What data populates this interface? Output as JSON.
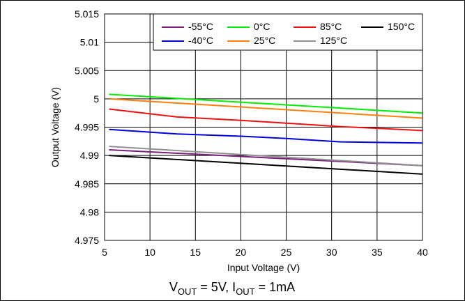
{
  "chart_data": {
    "type": "line",
    "xlabel": "Input Voltage (V)",
    "ylabel": "Output Voltage (V)",
    "xlim": [
      5,
      40
    ],
    "ylim": [
      4.975,
      5.015
    ],
    "x_ticks": [
      5,
      10,
      15,
      20,
      25,
      30,
      35,
      40
    ],
    "x_tick_labels": [
      "5",
      "10",
      "15",
      "20",
      "25",
      "30",
      "35",
      "40"
    ],
    "y_ticks": [
      4.975,
      4.98,
      4.985,
      4.99,
      4.995,
      5.0,
      5.005,
      5.01,
      5.015
    ],
    "y_tick_labels": [
      "4.975",
      "4.98",
      "4.985",
      "4.99",
      "4.995",
      "5",
      "5.005",
      "5.01",
      "5.015"
    ],
    "grid": true,
    "legend_position": "top-right",
    "caption": {
      "main": "V",
      "sub1": "OUT",
      "mid": " = 5V, I",
      "sub2": "OUT",
      "end": " = 1mA"
    },
    "series": [
      {
        "name": "-55°C",
        "color": "#7b1f7b",
        "x": [
          5.5,
          40
        ],
        "y": [
          4.991,
          4.9882
        ]
      },
      {
        "name": "-40°C",
        "color": "#0000dd",
        "x": [
          5.5,
          13,
          20,
          25,
          31,
          35,
          40
        ],
        "y": [
          4.9946,
          4.9938,
          4.9934,
          4.993,
          4.9924,
          4.9923,
          4.9922
        ]
      },
      {
        "name": "0°C",
        "color": "#00ee00",
        "x": [
          5.5,
          40
        ],
        "y": [
          5.0008,
          4.9975
        ]
      },
      {
        "name": "25°C",
        "color": "#ff7f0e",
        "x": [
          5.5,
          40
        ],
        "y": [
          5.0,
          4.9966
        ]
      },
      {
        "name": "85°C",
        "color": "#ee1111",
        "x": [
          5.5,
          13,
          20,
          25,
          31,
          35,
          40
        ],
        "y": [
          4.9982,
          4.9968,
          4.9962,
          4.9957,
          4.9951,
          4.9948,
          4.9944
        ]
      },
      {
        "name": "125°C",
        "color": "#909090",
        "x": [
          5.5,
          40
        ],
        "y": [
          4.9916,
          4.9882
        ]
      },
      {
        "name": "150°C",
        "color": "#000000",
        "x": [
          5.5,
          40
        ],
        "y": [
          4.99,
          4.9867
        ]
      }
    ],
    "legend_rows": [
      [
        "-55°C",
        "0°C",
        "85°C",
        "150°C"
      ],
      [
        "-40°C",
        "25°C",
        "125°C"
      ]
    ]
  }
}
